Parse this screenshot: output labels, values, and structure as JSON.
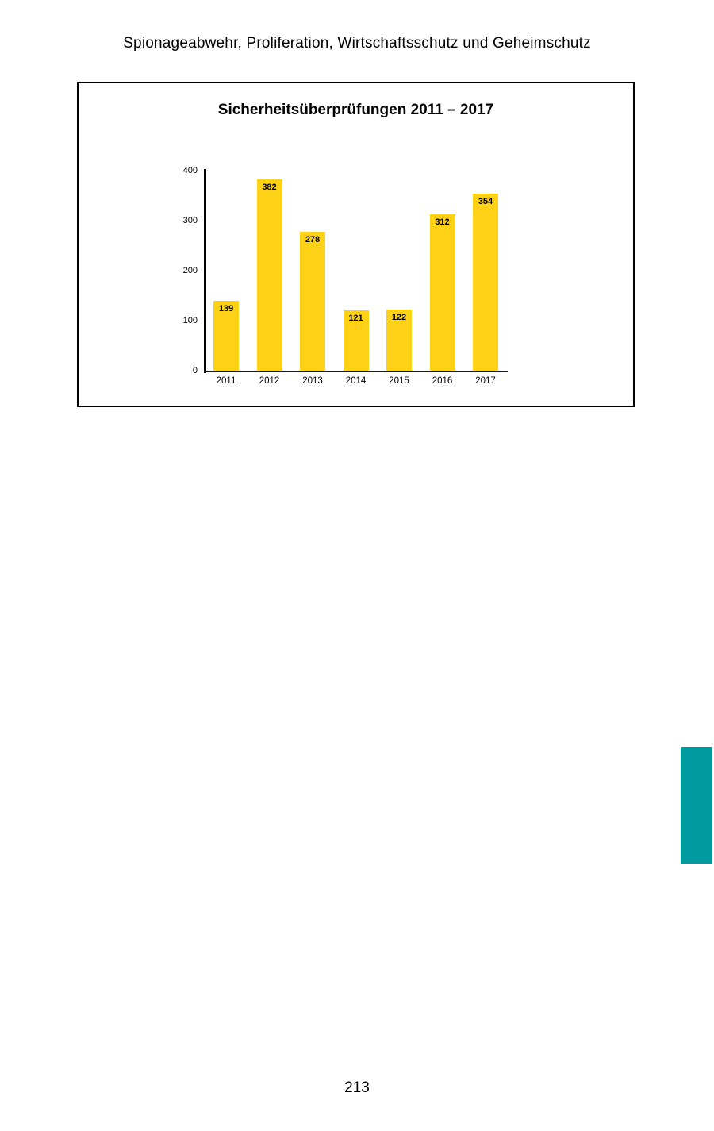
{
  "page": {
    "header": "Spionageabwehr, Proliferation, Wirtschaftsschutz und Geheimschutz",
    "page_number": "213",
    "section_tab_color": "#0099A0"
  },
  "chart_data": {
    "type": "bar",
    "title": "Sicherheitsüberprüfungen 2011 – 2017",
    "categories": [
      "2011",
      "2012",
      "2013",
      "2014",
      "2015",
      "2016",
      "2017"
    ],
    "values": [
      139,
      382,
      278,
      121,
      122,
      312,
      354
    ],
    "xlabel": "",
    "ylabel": "",
    "ylim": [
      0,
      400
    ],
    "yticks": [
      0,
      100,
      200,
      300,
      400
    ],
    "grid": false,
    "legend": "none",
    "bar_color": "#FCD116",
    "value_label_position": "inside-top",
    "value_label_color": "#000000"
  }
}
